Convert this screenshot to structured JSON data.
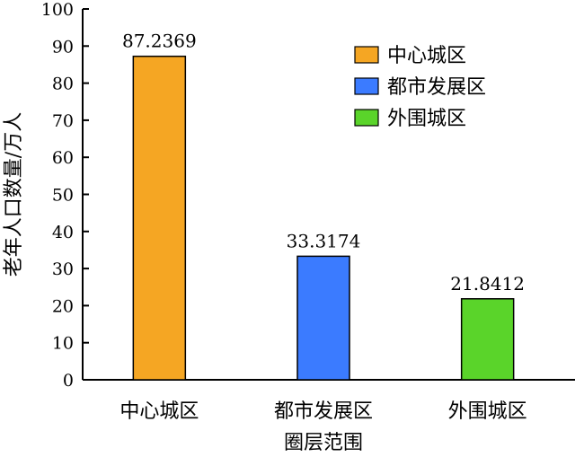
{
  "chart_data": {
    "type": "bar",
    "categories": [
      "中心城区",
      "都市发展区",
      "外围城区"
    ],
    "values": [
      87.2369,
      33.3174,
      21.8412
    ],
    "value_labels": [
      "87.2369",
      "33.3174",
      "21.8412"
    ],
    "colors": [
      "#f5a623",
      "#3b7bff",
      "#5ad42a"
    ],
    "xlabel": "圈层范围",
    "ylabel": "老年人口数量/万人",
    "ylim": [
      0,
      100
    ],
    "yticks": [
      0,
      10,
      20,
      30,
      40,
      50,
      60,
      70,
      80,
      90,
      100
    ],
    "grid": false,
    "legend": {
      "position": "top-right",
      "entries": [
        "中心城区",
        "都市发展区",
        "外围城区"
      ]
    }
  }
}
